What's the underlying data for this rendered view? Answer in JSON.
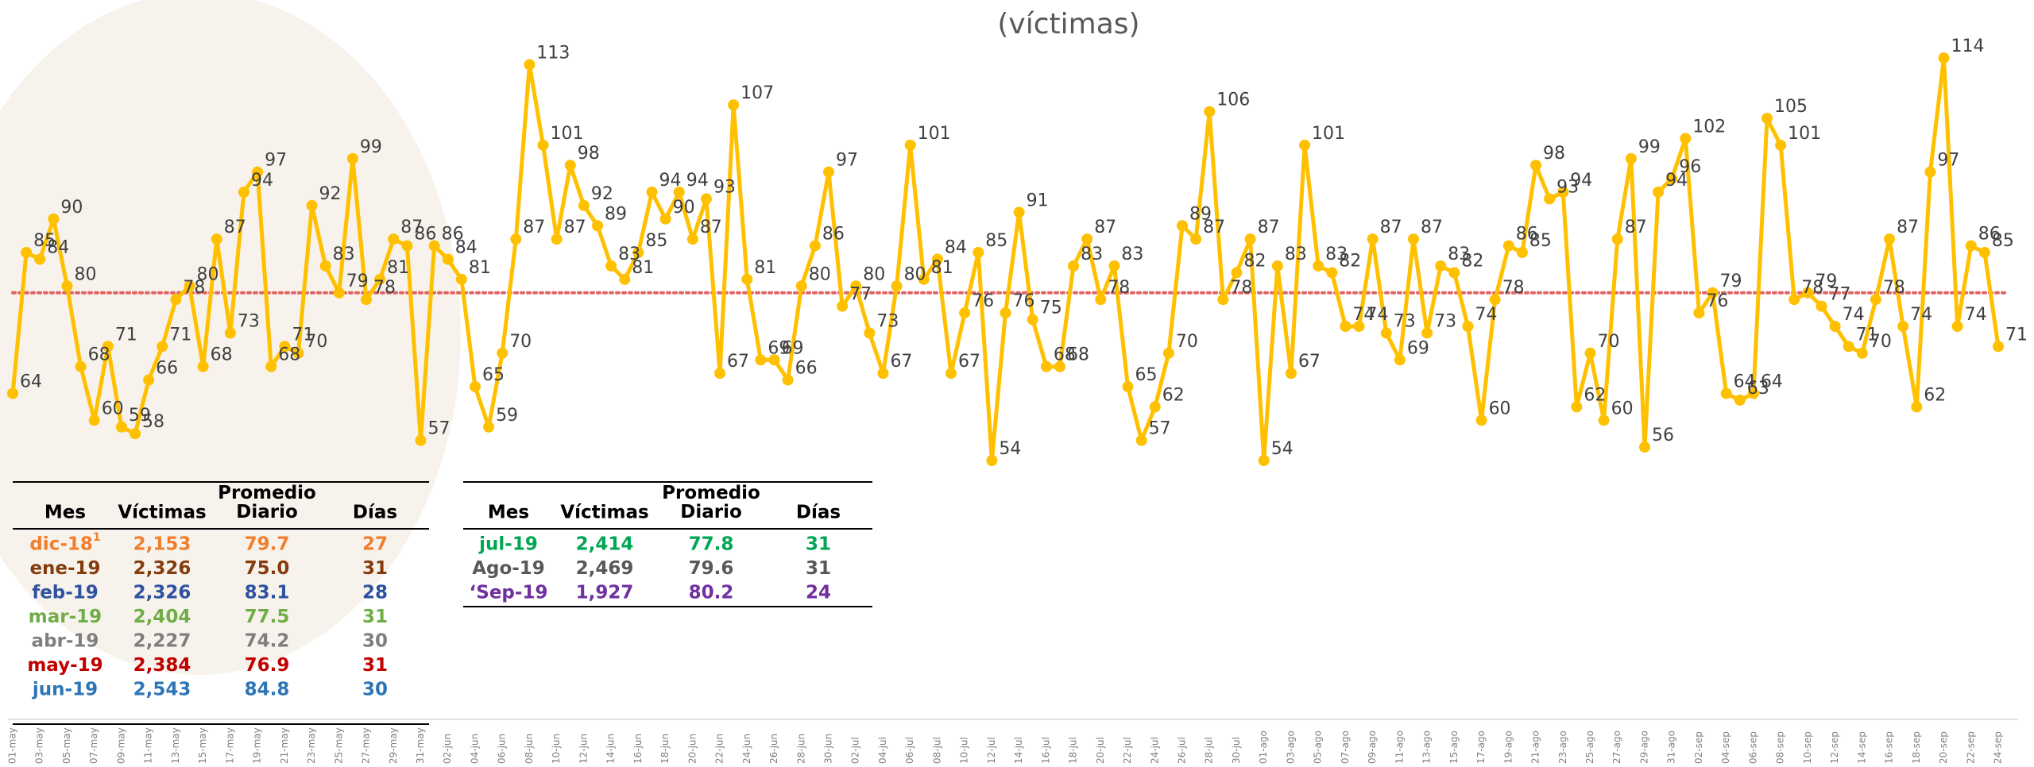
{
  "chart_data": {
    "type": "line",
    "title": "(víctimas)",
    "categories": [
      "01-may",
      null,
      "03-may",
      null,
      "05-may",
      null,
      "07-may",
      null,
      "09-may",
      null,
      "11-may",
      null,
      "13-may",
      null,
      "15-may",
      null,
      "17-may",
      null,
      "19-may",
      null,
      "21-may",
      null,
      "23-may",
      null,
      "25-may",
      null,
      "27-may",
      null,
      "29-may",
      null,
      "31-may",
      null,
      "02-jun",
      null,
      "04-jun",
      null,
      "06-jun",
      null,
      "08-jun",
      null,
      "10-jun",
      null,
      "12-jun",
      null,
      "14-jun",
      null,
      "16-jun",
      null,
      "18-jun",
      null,
      "20-jun",
      null,
      "22-jun",
      null,
      "24-jun",
      null,
      "26-jun",
      null,
      "28-jun",
      null,
      "30-jun",
      null,
      "02-jul",
      null,
      "04-jul",
      null,
      "06-jul",
      null,
      "08-jul",
      null,
      "10-jul",
      null,
      "12-jul",
      null,
      "14-jul",
      null,
      "16-jul",
      null,
      "18-jul",
      null,
      "20-jul",
      null,
      "22-jul",
      null,
      "24-jul",
      null,
      "26-jul",
      null,
      "28-jul",
      null,
      "30-jul",
      null,
      "01-ago",
      null,
      "03-ago",
      null,
      "05-ago",
      null,
      "07-ago",
      null,
      "09-ago",
      null,
      "11-ago",
      null,
      "13-ago",
      null,
      "15-ago",
      null,
      "17-ago",
      null,
      "19-ago",
      null,
      "21-ago",
      null,
      "23-ago",
      null,
      "25-ago",
      null,
      "27-ago",
      null,
      "29-ago",
      null,
      "31-ago",
      null,
      "02-sep",
      null,
      "04-sep",
      null,
      "06-sep",
      null,
      "08-sep",
      null,
      "10-sep",
      null,
      "12-sep",
      null,
      "14-sep",
      null,
      "16-sep",
      null,
      "18-sep",
      null,
      "20-sep",
      null,
      "22-sep",
      null,
      "24-sep"
    ],
    "series": [
      {
        "color": "#ffc000",
        "values": [
          64,
          85,
          84,
          90,
          80,
          68,
          60,
          71,
          59,
          58,
          66,
          71,
          78,
          80,
          68,
          87,
          73,
          94,
          97,
          68,
          71,
          70,
          92,
          83,
          79,
          99,
          78,
          81,
          87,
          86,
          57,
          86,
          84,
          81,
          65,
          59,
          70,
          87,
          113,
          101,
          87,
          98,
          92,
          89,
          83,
          81,
          85,
          94,
          90,
          94,
          87,
          93,
          67,
          107,
          81,
          69,
          69,
          66,
          80,
          86,
          97,
          77,
          80,
          73,
          67,
          80,
          101,
          81,
          84,
          67,
          76,
          85,
          54,
          76,
          91,
          75,
          68,
          68,
          83,
          87,
          78,
          83,
          65,
          57,
          62,
          70,
          89,
          87,
          106,
          78,
          82,
          87,
          54,
          83,
          67,
          101,
          83,
          82,
          74,
          74,
          87,
          73,
          69,
          87,
          73,
          83,
          82,
          74,
          60,
          78,
          86,
          85,
          98,
          93,
          94,
          62,
          70,
          60,
          87,
          99,
          56,
          94,
          96,
          102,
          76,
          79,
          64,
          63,
          64,
          105,
          101,
          78,
          79,
          77,
          74,
          71,
          70,
          78,
          87,
          74,
          62,
          97,
          114,
          74,
          86,
          85,
          71
        ]
      }
    ],
    "reference_line": {
      "value": 79,
      "color": "#e06666"
    }
  },
  "tables": [
    {
      "columns": [
        "Mes",
        "Víctimas",
        "Promedio Diario",
        "Días"
      ],
      "rows": [
        {
          "color": "#f07f2d",
          "cells": [
            "dic-18",
            "2,153",
            "79.7",
            "27"
          ],
          "note": "1"
        },
        {
          "color": "#843c0c",
          "cells": [
            "ene-19",
            "2,326",
            "75.0",
            "31"
          ]
        },
        {
          "color": "#2f52a0",
          "cells": [
            "feb-19",
            "2,326",
            "83.1",
            "28"
          ]
        },
        {
          "color": "#70ad47",
          "cells": [
            "mar-19",
            "2,404",
            "77.5",
            "31"
          ]
        },
        {
          "color": "#7f7f7f",
          "cells": [
            "abr-19",
            "2,227",
            "74.2",
            "30"
          ]
        },
        {
          "color": "#c00000",
          "cells": [
            "may-19",
            "2,384",
            "76.9",
            "31"
          ]
        },
        {
          "color": "#2e75b6",
          "cells": [
            "jun-19",
            "2,543",
            "84.8",
            "30"
          ]
        }
      ]
    },
    {
      "columns": [
        "Mes",
        "Víctimas",
        "Promedio Diario",
        "Días"
      ],
      "rows": [
        {
          "color": "#00a651",
          "cells": [
            "jul-19",
            "2,414",
            "77.8",
            "31"
          ]
        },
        {
          "color": "#595959",
          "cells": [
            "Ago-19",
            "2,469",
            "79.6",
            "31"
          ]
        },
        {
          "color": "#7030a0",
          "cells": [
            "‘Sep-19",
            "1,927",
            "80.2",
            "24"
          ]
        }
      ]
    }
  ]
}
